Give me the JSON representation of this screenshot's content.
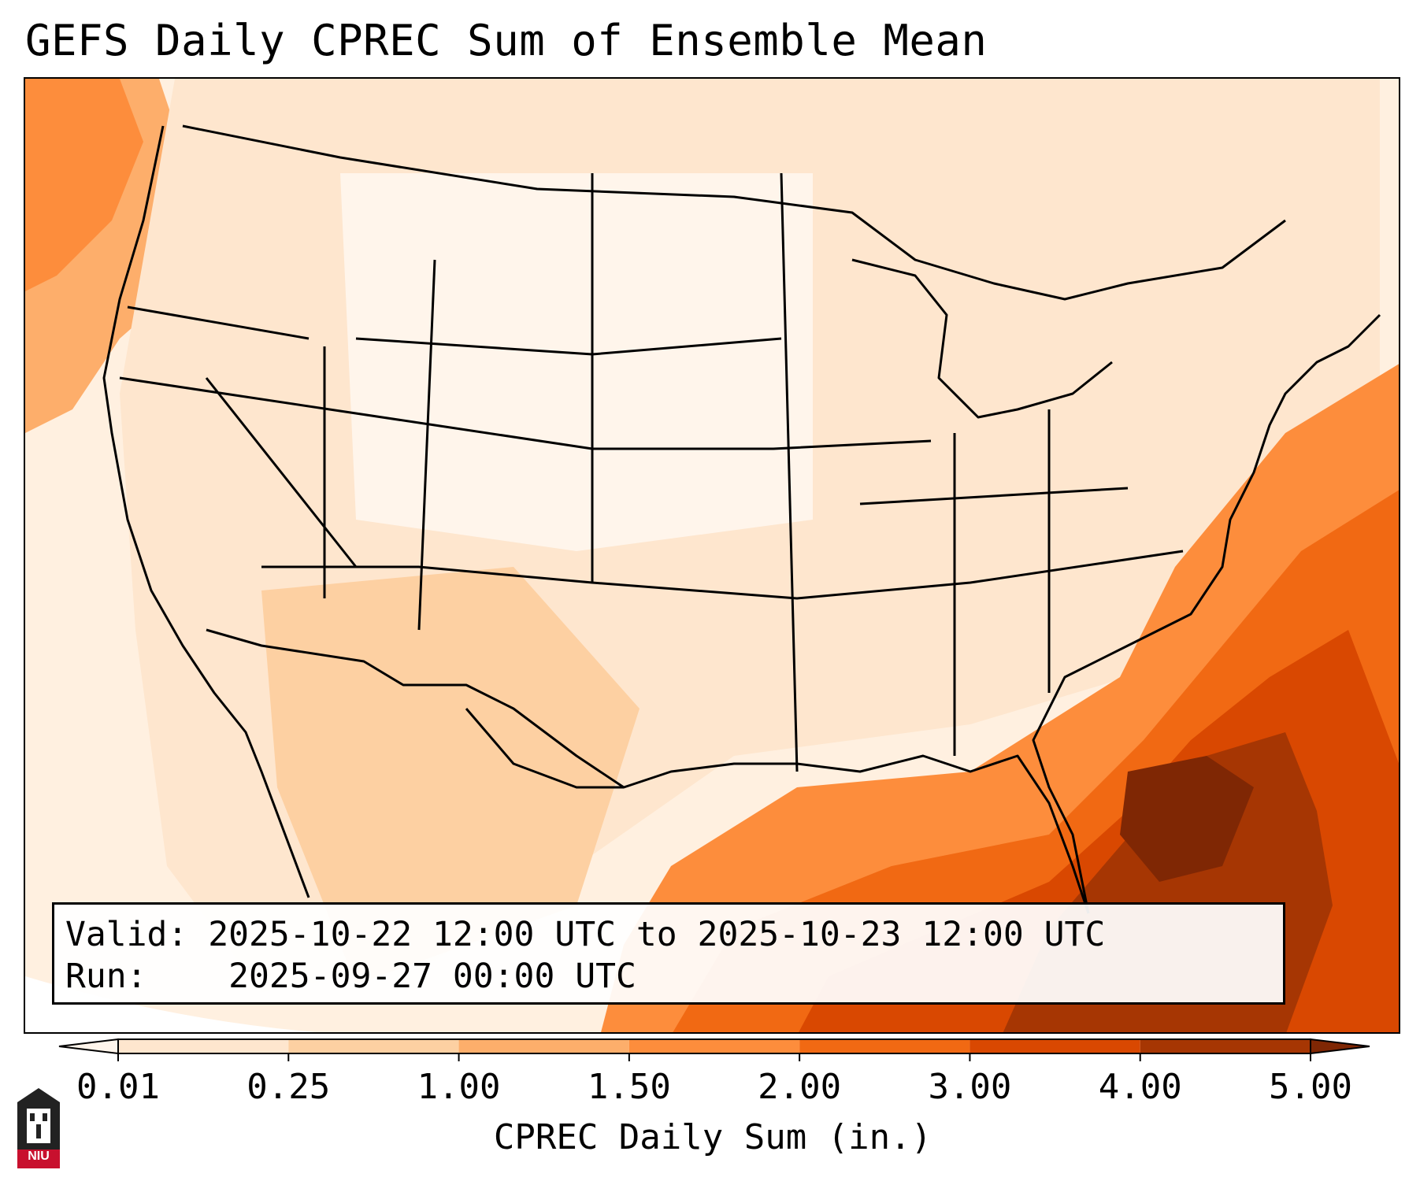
{
  "title": "GEFS Daily CPREC Sum of Ensemble Mean",
  "info": {
    "valid_label": "Valid:",
    "valid_value": "2025-10-22 12:00 UTC to 2025-10-23 12:00 UTC",
    "run_label": "Run:",
    "run_value": "2025-09-27 00:00 UTC"
  },
  "colorbar": {
    "label": "CPREC Daily Sum (in.)",
    "ticks": [
      "0.01",
      "0.25",
      "1.00",
      "1.50",
      "2.00",
      "3.00",
      "4.00",
      "5.00"
    ],
    "colors": [
      "#fff5eb",
      "#fee6ce",
      "#fdd0a2",
      "#fdae6b",
      "#fd8d3c",
      "#f16913",
      "#d94801",
      "#a63603",
      "#7f2704"
    ],
    "extend": "both"
  },
  "logo": {
    "text": "NIU"
  },
  "icons": {
    "logo": "university-logo-icon"
  }
}
